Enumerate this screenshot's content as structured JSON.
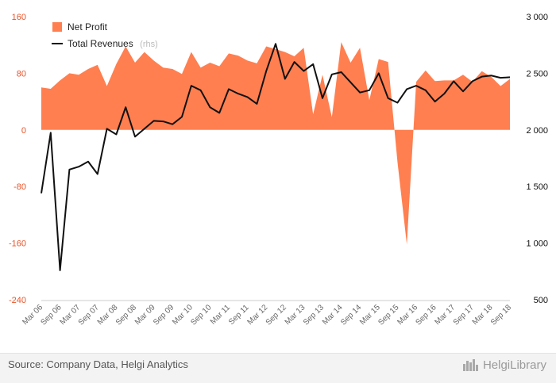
{
  "chart_data": {
    "type": "area",
    "x": [
      "Mar 06",
      "Jun 06",
      "Sep 06",
      "Dec 06",
      "Mar 07",
      "Jun 07",
      "Sep 07",
      "Dec 07",
      "Mar 08",
      "Jun 08",
      "Sep 08",
      "Dec 08",
      "Mar 09",
      "Jun 09",
      "Sep 09",
      "Dec 09",
      "Mar 10",
      "Jun 10",
      "Sep 10",
      "Dec 10",
      "Mar 11",
      "Jun 11",
      "Sep 11",
      "Dec 11",
      "Mar 12",
      "Jun 12",
      "Sep 12",
      "Dec 12",
      "Mar 13",
      "Jun 13",
      "Sep 13",
      "Dec 13",
      "Mar 14",
      "Jun 14",
      "Sep 14",
      "Dec 14",
      "Mar 15",
      "Jun 15",
      "Sep 15",
      "Dec 15",
      "Mar 16",
      "Jun 16",
      "Sep 16",
      "Dec 16",
      "Mar 17",
      "Jun 17",
      "Sep 17",
      "Dec 17",
      "Mar 18",
      "Jun 18",
      "Sep 18"
    ],
    "xtick_labels": [
      "Mar 06",
      "Sep 06",
      "Mar 07",
      "Sep 07",
      "Mar 08",
      "Sep 08",
      "Mar 09",
      "Sep 09",
      "Mar 10",
      "Sep 10",
      "Mar 11",
      "Sep 11",
      "Mar 12",
      "Sep 12",
      "Mar 13",
      "Sep 13",
      "Mar 14",
      "Sep 14",
      "Mar 15",
      "Sep 15",
      "Mar 16",
      "Sep 16",
      "Mar 17",
      "Sep 17",
      "Mar 18",
      "Sep 18"
    ],
    "series": [
      {
        "name": "Net Profit",
        "kind": "area",
        "axis": "left",
        "color": "#ff7f50",
        "values": [
          60,
          58,
          70,
          80,
          78,
          86,
          92,
          62,
          93,
          118,
          95,
          110,
          98,
          88,
          86,
          79,
          110,
          88,
          95,
          90,
          108,
          105,
          98,
          94,
          118,
          114,
          110,
          104,
          116,
          22,
          78,
          18,
          124,
          95,
          116,
          42,
          100,
          96,
          -45,
          -162,
          68,
          84,
          69,
          70,
          70,
          78,
          68,
          83,
          75,
          62,
          72
        ]
      },
      {
        "name": "Total Revenues",
        "name_suffix": "(rhs)",
        "kind": "line",
        "axis": "right",
        "color": "#111111",
        "values": [
          1440,
          1975,
          760,
          1650,
          1675,
          1720,
          1610,
          2010,
          1960,
          2200,
          1940,
          2010,
          2080,
          2075,
          2050,
          2115,
          2390,
          2350,
          2200,
          2150,
          2360,
          2320,
          2290,
          2230,
          2520,
          2760,
          2450,
          2600,
          2520,
          2580,
          2280,
          2490,
          2510,
          2420,
          2330,
          2350,
          2500,
          2280,
          2240,
          2360,
          2390,
          2350,
          2250,
          2320,
          2430,
          2340,
          2430,
          2470,
          2480,
          2460,
          2465
        ]
      }
    ],
    "left_axis": {
      "ylim": [
        -240,
        160
      ],
      "ticks": [
        "160",
        "80",
        "0",
        "-80",
        "-160",
        "-240"
      ],
      "tick_values": [
        160,
        80,
        0,
        -80,
        -160,
        -240
      ],
      "color": "#e8542a"
    },
    "right_axis": {
      "ylim": [
        500,
        3000
      ],
      "ticks": [
        "3 000",
        "2 500",
        "2 000",
        "1 500",
        "1 000",
        "500"
      ],
      "tick_values": [
        3000,
        2500,
        2000,
        1500,
        1000,
        500
      ]
    },
    "grid": false,
    "legend_position": "top-left"
  },
  "footer": {
    "source": "Source: Company Data, Helgi Analytics",
    "logo_text": "HelgiLibrary"
  }
}
